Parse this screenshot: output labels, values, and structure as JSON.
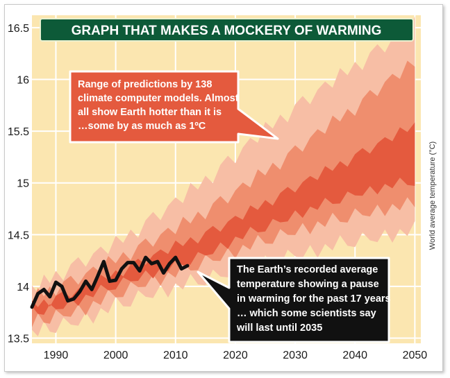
{
  "chart_data": {
    "type": "area",
    "title": "GRAPH THAT MAKES A MOCKERY OF WARMING",
    "ylabel": "World average temperature (°C)",
    "xlabel": "",
    "xlim": [
      1986,
      2051
    ],
    "ylim": [
      13.45,
      16.62
    ],
    "xticks": [
      1990,
      2000,
      2010,
      2020,
      2030,
      2040,
      2050
    ],
    "yticks": [
      13.5,
      14,
      14.5,
      15,
      15.5,
      16,
      16.5
    ],
    "ytick_labels": [
      "13.5",
      "14",
      "14.5",
      "15",
      "15.5",
      "16",
      "16.5"
    ],
    "grid": true,
    "bands": [
      {
        "name": "outer",
        "x": [
          1986,
          1990,
          1995,
          2000,
          2005,
          2010,
          2015,
          2020,
          2025,
          2030,
          2035,
          2040,
          2045,
          2050
        ],
        "lower": [
          13.55,
          13.62,
          13.7,
          13.82,
          13.93,
          14.0,
          14.08,
          14.17,
          14.22,
          14.32,
          14.38,
          14.45,
          14.5,
          14.55
        ],
        "upper": [
          13.95,
          14.1,
          14.25,
          14.4,
          14.6,
          14.8,
          15.02,
          15.25,
          15.5,
          15.72,
          15.92,
          16.12,
          16.32,
          16.52
        ]
      },
      {
        "name": "middle",
        "x": [
          1986,
          1990,
          1995,
          2000,
          2005,
          2010,
          2015,
          2020,
          2025,
          2030,
          2035,
          2040,
          2045,
          2050
        ],
        "lower": [
          13.65,
          13.72,
          13.8,
          13.93,
          14.05,
          14.13,
          14.25,
          14.35,
          14.45,
          14.55,
          14.62,
          14.7,
          14.76,
          14.8
        ],
        "upper": [
          13.88,
          13.98,
          14.1,
          14.25,
          14.4,
          14.55,
          14.72,
          14.9,
          15.1,
          15.3,
          15.52,
          15.72,
          15.95,
          16.15
        ]
      },
      {
        "name": "inner",
        "x": [
          1986,
          1990,
          1995,
          2000,
          2005,
          2010,
          2015,
          2020,
          2025,
          2030,
          2035,
          2040,
          2045,
          2050
        ],
        "lower": [
          13.75,
          13.8,
          13.9,
          14.02,
          14.12,
          14.2,
          14.32,
          14.46,
          14.58,
          14.7,
          14.8,
          14.9,
          14.97,
          15.02
        ],
        "upper": [
          13.8,
          13.88,
          13.98,
          14.12,
          14.25,
          14.38,
          14.5,
          14.64,
          14.8,
          14.95,
          15.1,
          15.25,
          15.4,
          15.55
        ]
      }
    ],
    "observed": {
      "x": [
        1986,
        1987,
        1988,
        1989,
        1990,
        1991,
        1992,
        1993,
        1994,
        1995,
        1996,
        1997,
        1998,
        1999,
        2000,
        2001,
        2002,
        2003,
        2004,
        2005,
        2006,
        2007,
        2008,
        2009,
        2010,
        2011,
        2012
      ],
      "y": [
        13.8,
        13.93,
        13.97,
        13.9,
        14.04,
        14.0,
        13.86,
        13.88,
        13.95,
        14.05,
        13.97,
        14.1,
        14.24,
        14.05,
        14.06,
        14.17,
        14.23,
        14.23,
        14.15,
        14.28,
        14.22,
        14.24,
        14.13,
        14.22,
        14.28,
        14.17,
        14.2
      ]
    },
    "annotations": [
      {
        "text": [
          "Range of predictions by 138",
          "climate computer models. Almost",
          "all show Earth hotter than it is",
          "…some by as much as 1ºC"
        ]
      },
      {
        "text": [
          "The Earth’s recorded average",
          "temperature showing a pause",
          "in warming for the past 17 years",
          "… which some scientists say",
          "will last until 2035"
        ]
      }
    ],
    "colors": {
      "background": "#fbe6b0",
      "grid": "#ffffff",
      "outer_band": "#f7bea5",
      "middle_band": "#ef8e6e",
      "inner_band": "#e45a3e",
      "observed_line": "#111111",
      "callout_red": "#e45a3e",
      "callout_black": "#111111",
      "title_bg": "#0d5a38",
      "title_text": "#ffffff"
    }
  }
}
